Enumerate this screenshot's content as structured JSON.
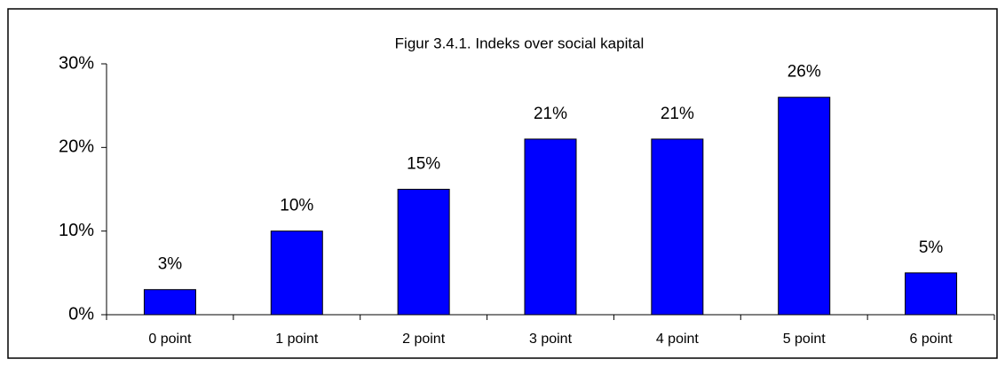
{
  "chart_data": {
    "type": "bar",
    "title": "Figur 3.4.1. Indeks over social kapital",
    "categories": [
      "0 point",
      "1 point",
      "2 point",
      "3 point",
      "4 point",
      "5 point",
      "6 point"
    ],
    "values": [
      3,
      10,
      15,
      21,
      21,
      26,
      5
    ],
    "value_labels": [
      "3%",
      "10%",
      "15%",
      "21%",
      "21%",
      "26%",
      "5%"
    ],
    "color": "#0000ff",
    "ylim": [
      0,
      30
    ],
    "yticks": [
      {
        "value": 0,
        "label": "0%"
      },
      {
        "value": 10,
        "label": "10%"
      },
      {
        "value": 20,
        "label": "20%"
      },
      {
        "value": 30,
        "label": "30%"
      }
    ],
    "grid": false
  }
}
